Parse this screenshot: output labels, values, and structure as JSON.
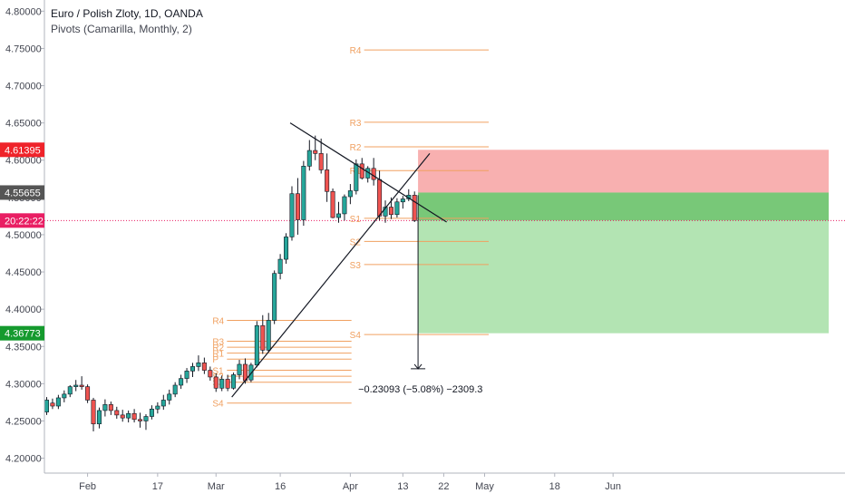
{
  "chart_data": {
    "type": "candlestick",
    "title": "Euro / Polish Zloty, 1D, OANDA",
    "indicator": "Pivots (Camarilla, Monthly, 2)",
    "ylim": [
      4.18,
      4.815
    ],
    "y_ticks": [
      "4.80000",
      "4.75000",
      "4.70000",
      "4.65000",
      "4.60000",
      "4.55000",
      "4.50000",
      "4.45000",
      "4.40000",
      "4.35000",
      "4.30000",
      "4.25000",
      "4.20000"
    ],
    "x_ticks": [
      {
        "label": "Feb",
        "t": 7
      },
      {
        "label": "17",
        "t": 19
      },
      {
        "label": "Mar",
        "t": 29
      },
      {
        "label": "16",
        "t": 40
      },
      {
        "label": "Apr",
        "t": 52
      },
      {
        "label": "13",
        "t": 61
      },
      {
        "label": "22",
        "t": 68
      },
      {
        "label": "May",
        "t": 75
      },
      {
        "label": "18",
        "t": 87
      },
      {
        "label": "Jun",
        "t": 97
      }
    ],
    "candles": [
      [
        4.262,
        4.282,
        4.258,
        4.278
      ],
      [
        4.274,
        4.28,
        4.266,
        4.27
      ],
      [
        4.27,
        4.285,
        4.266,
        4.281
      ],
      [
        4.281,
        4.291,
        4.275,
        4.286
      ],
      [
        4.286,
        4.298,
        4.282,
        4.296
      ],
      [
        4.296,
        4.305,
        4.29,
        4.298
      ],
      [
        4.298,
        4.31,
        4.292,
        4.296
      ],
      [
        4.296,
        4.299,
        4.274,
        4.278
      ],
      [
        4.278,
        4.281,
        4.236,
        4.246
      ],
      [
        4.246,
        4.268,
        4.24,
        4.264
      ],
      [
        4.264,
        4.279,
        4.256,
        4.272
      ],
      [
        4.272,
        4.276,
        4.258,
        4.264
      ],
      [
        4.264,
        4.269,
        4.253,
        4.258
      ],
      [
        4.258,
        4.265,
        4.249,
        4.254
      ],
      [
        4.254,
        4.264,
        4.248,
        4.26
      ],
      [
        4.26,
        4.266,
        4.248,
        4.252
      ],
      [
        4.252,
        4.261,
        4.241,
        4.25
      ],
      [
        4.25,
        4.259,
        4.238,
        4.256
      ],
      [
        4.256,
        4.271,
        4.252,
        4.266
      ],
      [
        4.266,
        4.275,
        4.26,
        4.27
      ],
      [
        4.27,
        4.285,
        4.265,
        4.278
      ],
      [
        4.278,
        4.292,
        4.272,
        4.286
      ],
      [
        4.286,
        4.302,
        4.282,
        4.298
      ],
      [
        4.298,
        4.312,
        4.293,
        4.307
      ],
      [
        4.307,
        4.321,
        4.301,
        4.317
      ],
      [
        4.317,
        4.328,
        4.309,
        4.323
      ],
      [
        4.323,
        4.338,
        4.317,
        4.328
      ],
      [
        4.328,
        4.335,
        4.313,
        4.318
      ],
      [
        4.318,
        4.323,
        4.304,
        4.309
      ],
      [
        4.309,
        4.314,
        4.289,
        4.294
      ],
      [
        4.294,
        4.311,
        4.29,
        4.306
      ],
      [
        4.306,
        4.312,
        4.29,
        4.294
      ],
      [
        4.294,
        4.315,
        4.292,
        4.312
      ],
      [
        4.312,
        4.332,
        4.306,
        4.326
      ],
      [
        4.326,
        4.334,
        4.3,
        4.304
      ],
      [
        4.305,
        4.328,
        4.302,
        4.325
      ],
      [
        4.325,
        4.384,
        4.322,
        4.378
      ],
      [
        4.378,
        4.392,
        4.34,
        4.345
      ],
      [
        4.345,
        4.395,
        4.342,
        4.385
      ],
      [
        4.385,
        4.452,
        4.38,
        4.448
      ],
      [
        4.448,
        4.474,
        4.44,
        4.467
      ],
      [
        4.467,
        4.502,
        4.461,
        4.497
      ],
      [
        4.497,
        4.565,
        4.492,
        4.555
      ],
      [
        4.555,
        4.576,
        4.5,
        4.52
      ],
      [
        4.52,
        4.599,
        4.512,
        4.592
      ],
      [
        4.592,
        4.627,
        4.586,
        4.613
      ],
      [
        4.613,
        4.633,
        4.6,
        4.609
      ],
      [
        4.609,
        4.629,
        4.582,
        4.587
      ],
      [
        4.587,
        4.609,
        4.544,
        4.558
      ],
      [
        4.558,
        4.562,
        4.522,
        4.523
      ],
      [
        4.523,
        4.544,
        4.516,
        4.528
      ],
      [
        4.528,
        4.554,
        4.519,
        4.551
      ],
      [
        4.551,
        4.568,
        4.541,
        4.559
      ],
      [
        4.559,
        4.601,
        4.554,
        4.595
      ],
      [
        4.595,
        4.603,
        4.574,
        4.576
      ],
      [
        4.576,
        4.592,
        4.57,
        4.589
      ],
      [
        4.589,
        4.603,
        4.566,
        4.574
      ],
      [
        4.574,
        4.586,
        4.519,
        4.525
      ],
      [
        4.525,
        4.546,
        4.516,
        4.537
      ],
      [
        4.537,
        4.55,
        4.521,
        4.527
      ],
      [
        4.527,
        4.549,
        4.523,
        4.544
      ],
      [
        4.544,
        4.552,
        4.535,
        4.548
      ],
      [
        4.548,
        4.561,
        4.545,
        4.553
      ],
      [
        4.553,
        4.558,
        4.517,
        4.519
      ]
    ],
    "trendlines": [
      {
        "name": "descending-resistance",
        "from": [
          41.7,
          4.65
        ],
        "to": [
          68.5,
          4.517
        ]
      },
      {
        "name": "ascending-support",
        "from": [
          31.7,
          4.282
        ],
        "to": [
          65.6,
          4.609
        ]
      }
    ],
    "pivots": [
      {
        "period": "march",
        "t_start": 28.7,
        "t_end": 52.2,
        "levels": [
          {
            "label": "R4",
            "value": 4.385
          },
          {
            "label": "R3",
            "value": 4.357
          },
          {
            "label": "R2",
            "value": 4.349
          },
          {
            "label": "R1",
            "value": 4.341
          },
          {
            "label": "P",
            "value": 4.333
          },
          {
            "label": "S1",
            "value": 4.318
          },
          {
            "label": "S2",
            "value": 4.31
          },
          {
            "label": "S3",
            "value": 4.302
          },
          {
            "label": "S4",
            "value": 4.274
          }
        ]
      },
      {
        "period": "april",
        "t_start": 52.2,
        "t_end": 75.7,
        "levels": [
          {
            "label": "R4",
            "value": 4.748
          },
          {
            "label": "R3",
            "value": 4.651
          },
          {
            "label": "R2",
            "value": 4.618
          },
          {
            "label": "R1",
            "value": 4.586
          },
          {
            "label": "S1",
            "value": 4.522
          },
          {
            "label": "S2",
            "value": 4.491
          },
          {
            "label": "S3",
            "value": 4.46
          },
          {
            "label": "S4",
            "value": 4.366
          }
        ]
      }
    ],
    "position": {
      "t_start": 63.6,
      "t_end": 99,
      "stop": 4.61395,
      "entry": 4.55655,
      "target": 4.36773
    },
    "measure": {
      "t": 63.6,
      "from": 4.553,
      "to": 4.32,
      "label": "−0.23093 (−5.08%) −2309.3"
    },
    "current_price": {
      "value": 4.519,
      "label": "20:22:22"
    },
    "price_tags": [
      {
        "label": "4.61395",
        "value": 4.61395,
        "color": "#ef232a"
      },
      {
        "label": "4.55655",
        "value": 4.55655,
        "color": "#555555"
      },
      {
        "label": "20:22:22",
        "value": 4.519,
        "color": "#e91e63"
      },
      {
        "label": "4.36773",
        "value": 4.36773,
        "color": "#159a2e"
      }
    ],
    "colors": {
      "up": "#26a69a",
      "down": "#ef5350",
      "pivot": "#f0a060",
      "stop_zone": "#f8b0b0",
      "target_zone": "#b3e4b3",
      "entry_zone": "#78c878"
    }
  }
}
